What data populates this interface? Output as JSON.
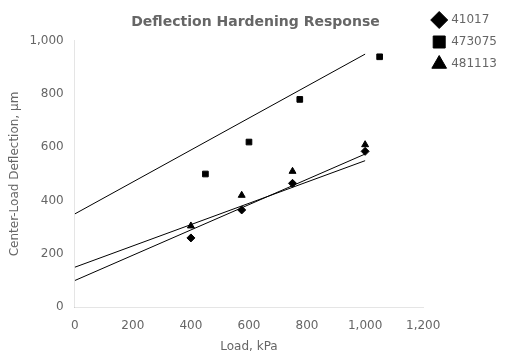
{
  "chart_data": {
    "type": "scatter",
    "title": "Deflection Hardening Response",
    "xlabel": "Load, kPa",
    "ylabel": "Center-Load Deflection, μm",
    "xlim": [
      0,
      1200
    ],
    "ylim": [
      0,
      1000
    ],
    "xticks": [
      0,
      200,
      400,
      600,
      800,
      1000,
      1200
    ],
    "yticks": [
      0,
      200,
      400,
      600,
      800,
      1000
    ],
    "grid": false,
    "legend": "right",
    "series": [
      {
        "name": "41017",
        "color": "#000000",
        "marker": "diamond",
        "x": [
          400,
          575,
          750,
          1000
        ],
        "values": [
          260,
          365,
          465,
          585
        ],
        "line_x": [
          0,
          1000
        ],
        "line_y": [
          100,
          575
        ]
      },
      {
        "name": "473075",
        "color": "#000000",
        "marker": "square",
        "x": [
          450,
          600,
          775,
          1050
        ],
        "values": [
          500,
          620,
          780,
          940
        ],
        "line_x": [
          0,
          1000
        ],
        "line_y": [
          350,
          950
        ]
      },
      {
        "name": "481113",
        "color": "#000000",
        "marker": "triangle",
        "x": [
          400,
          575,
          750,
          1000
        ],
        "values": [
          305,
          420,
          510,
          610
        ],
        "line_x": [
          0,
          1000
        ],
        "line_y": [
          150,
          550
        ]
      }
    ]
  }
}
